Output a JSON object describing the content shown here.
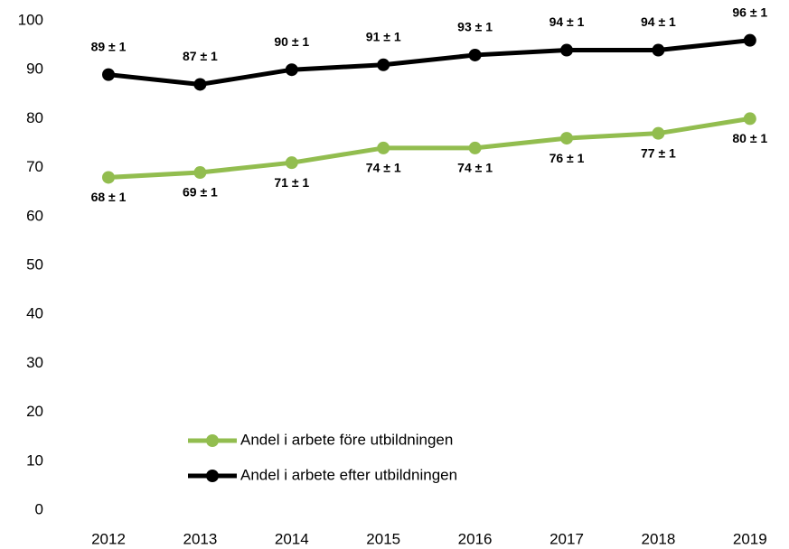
{
  "chart_data": {
    "type": "line",
    "categories": [
      "2012",
      "2013",
      "2014",
      "2015",
      "2016",
      "2017",
      "2018",
      "2019"
    ],
    "series": [
      {
        "name": "Andel i arbete före utbildningen",
        "color": "#92bd4f",
        "values": [
          68,
          69,
          71,
          74,
          74,
          76,
          77,
          80
        ],
        "value_labels": [
          "68 ± 1",
          "69 ± 1",
          "71 ± 1",
          "74 ± 1",
          "74 ± 1",
          "76 ± 1",
          "77 ± 1",
          "80 ± 1"
        ]
      },
      {
        "name": "Andel i arbete efter utbildningen",
        "color": "#000000",
        "values": [
          89,
          87,
          90,
          91,
          93,
          94,
          94,
          96
        ],
        "value_labels": [
          "89 ± 1",
          "87 ± 1",
          "90 ± 1",
          "91 ± 1",
          "93 ± 1",
          "94 ± 1",
          "94 ± 1",
          "96 ± 1"
        ]
      }
    ],
    "ylim": [
      0,
      100
    ],
    "yticks": [
      0,
      10,
      20,
      30,
      40,
      50,
      60,
      70,
      80,
      90,
      100
    ],
    "grid": false
  }
}
